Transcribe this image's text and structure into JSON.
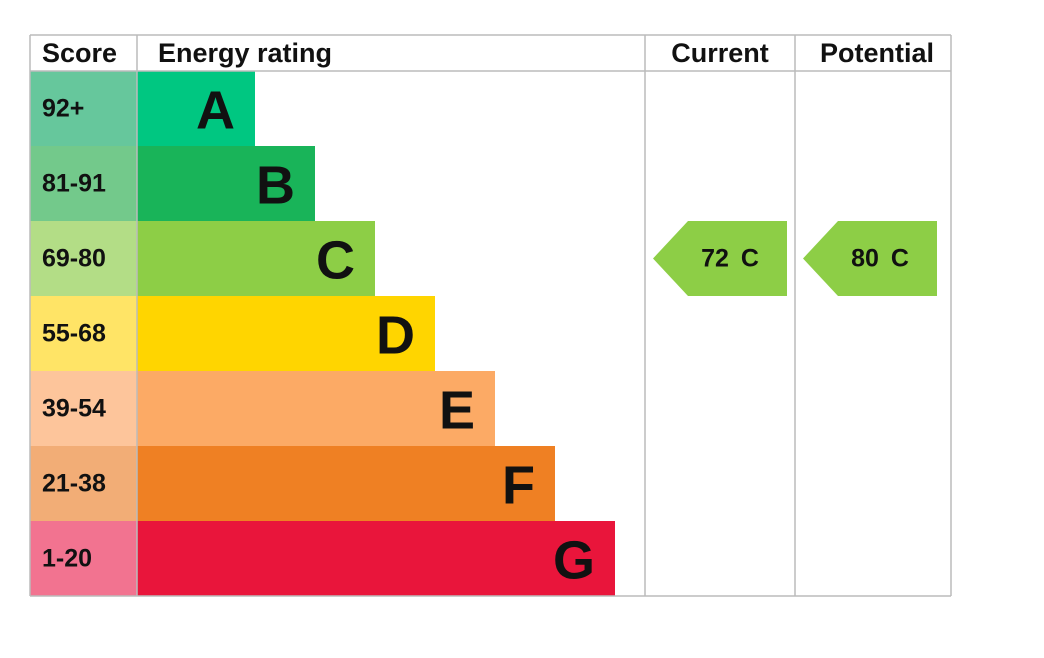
{
  "header": {
    "score": "Score",
    "rating": "Energy rating",
    "current": "Current",
    "potential": "Potential"
  },
  "bands": [
    {
      "range": "92+",
      "letter": "A",
      "color": "#00c781",
      "score_color": "#66c79c"
    },
    {
      "range": "81-91",
      "letter": "B",
      "color": "#19b459",
      "score_color": "#73c98b"
    },
    {
      "range": "69-80",
      "letter": "C",
      "color": "#8dce46",
      "score_color": "#b3dd86"
    },
    {
      "range": "55-68",
      "letter": "D",
      "color": "#ffd500",
      "score_color": "#ffe466"
    },
    {
      "range": "39-54",
      "letter": "E",
      "color": "#fcaa65",
      "score_color": "#fdc59b"
    },
    {
      "range": "21-38",
      "letter": "F",
      "color": "#ef8023",
      "score_color": "#f2ad76"
    },
    {
      "range": "1-20",
      "letter": "G",
      "color": "#e9153b",
      "score_color": "#f27390"
    }
  ],
  "current": {
    "score": 72,
    "band": "C"
  },
  "potential": {
    "score": 80,
    "band": "C"
  }
}
